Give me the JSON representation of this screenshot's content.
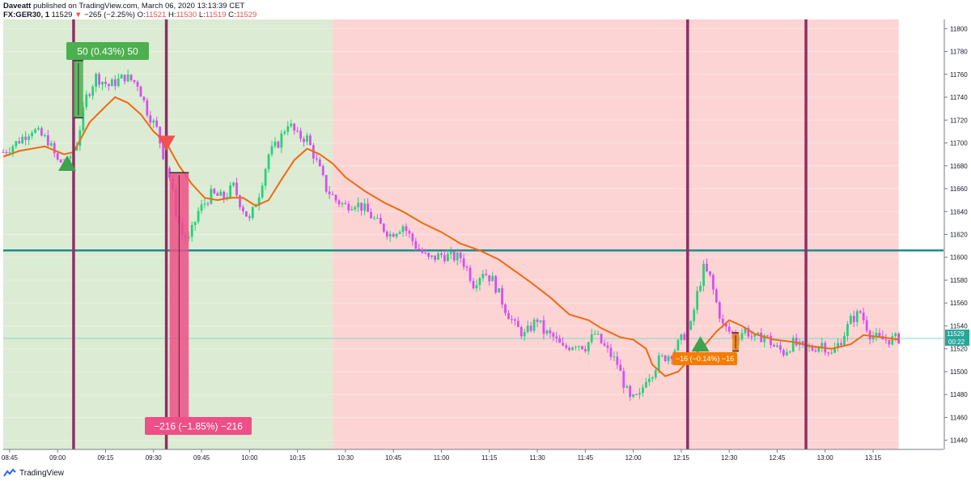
{
  "header": {
    "author": "Daveatt",
    "published": "published on TradingView.com, March 06, 2020 13:13:39 CET",
    "symbol": "FX:GER30, 1",
    "last": "11529",
    "change_arrow": "▼",
    "change": "−265 (−2.25%)",
    "o_label": "O:",
    "o": "11521",
    "h_label": "H:",
    "h": "11530",
    "l_label": "L:",
    "l": "11519",
    "c_label": "C:",
    "c": "11529"
  },
  "footer": {
    "brand": "TradingView"
  },
  "annotations": {
    "long_trade": "50 (0.43%) 50",
    "short_trade": "−216 (−1.85%) −216",
    "small_trade": "−16 (−0.14%) −16"
  },
  "price_label": {
    "value": "11529",
    "countdown": "00:22"
  },
  "colors": {
    "bull": "#26d07c",
    "bear": "#d64ef0",
    "ema": "#f06a10",
    "bg_green": "#dcebd3",
    "bg_red": "#fdd4d4",
    "level_line": "#1e8c8c",
    "vline": "#8e2f66",
    "badge_green": "#4caf50",
    "badge_pink": "#ee4f86",
    "badge_orange": "#f57c00",
    "current_price": "#26a69a"
  },
  "chart_data": {
    "type": "candlestick",
    "symbol": "FX:GER30",
    "interval": "1 minute",
    "ylim": [
      11432,
      11808
    ],
    "y_ticks": [
      11440,
      11460,
      11480,
      11500,
      11520,
      11540,
      11560,
      11580,
      11600,
      11620,
      11640,
      11660,
      11680,
      11700,
      11720,
      11740,
      11760,
      11780,
      11800
    ],
    "x_ticks": [
      "08:45",
      "09:00",
      "09:15",
      "09:30",
      "09:45",
      "10:00",
      "10:15",
      "10:30",
      "10:45",
      "11:00",
      "11:15",
      "11:30",
      "11:45",
      "12:00",
      "12:15",
      "12:30",
      "12:45",
      "13:00",
      "13:15"
    ],
    "x_range_min": [
      -17,
      277
    ],
    "session_zones": [
      {
        "name": "long",
        "from": -17,
        "to": 86,
        "color": "#dcebd3"
      },
      {
        "name": "short",
        "from": 86,
        "to": 263,
        "color": "#fdd4d4"
      }
    ],
    "vertical_lines": [
      {
        "x": 5,
        "label": "09:05"
      },
      {
        "x": 34,
        "label": "09:34"
      },
      {
        "x": 197,
        "label": "12:17"
      },
      {
        "x": 234,
        "label": "12:54"
      }
    ],
    "horizontal_level": 11606,
    "current_price": 11529,
    "ema_path": [
      [
        -17,
        11688
      ],
      [
        -12,
        11693
      ],
      [
        -4,
        11697
      ],
      [
        2,
        11690
      ],
      [
        5,
        11692
      ],
      [
        10,
        11718
      ],
      [
        15,
        11732
      ],
      [
        18,
        11740
      ],
      [
        22,
        11735
      ],
      [
        26,
        11725
      ],
      [
        30,
        11710
      ],
      [
        34,
        11700
      ],
      [
        38,
        11680
      ],
      [
        42,
        11664
      ],
      [
        46,
        11652
      ],
      [
        50,
        11650
      ],
      [
        54,
        11652
      ],
      [
        58,
        11652
      ],
      [
        62,
        11645
      ],
      [
        66,
        11650
      ],
      [
        70,
        11668
      ],
      [
        74,
        11685
      ],
      [
        78,
        11695
      ],
      [
        82,
        11690
      ],
      [
        86,
        11682
      ],
      [
        90,
        11670
      ],
      [
        96,
        11658
      ],
      [
        102,
        11648
      ],
      [
        108,
        11640
      ],
      [
        114,
        11630
      ],
      [
        120,
        11622
      ],
      [
        126,
        11612
      ],
      [
        132,
        11606
      ],
      [
        138,
        11598
      ],
      [
        142,
        11590
      ],
      [
        148,
        11578
      ],
      [
        154,
        11565
      ],
      [
        160,
        11550
      ],
      [
        166,
        11545
      ],
      [
        170,
        11538
      ],
      [
        176,
        11530
      ],
      [
        180,
        11528
      ],
      [
        184,
        11520
      ],
      [
        186,
        11506
      ],
      [
        190,
        11496
      ],
      [
        194,
        11500
      ],
      [
        198,
        11512
      ],
      [
        202,
        11522
      ],
      [
        206,
        11535
      ],
      [
        210,
        11545
      ],
      [
        214,
        11540
      ],
      [
        218,
        11533
      ],
      [
        224,
        11528
      ],
      [
        230,
        11526
      ],
      [
        236,
        11522
      ],
      [
        242,
        11520
      ],
      [
        248,
        11524
      ],
      [
        252,
        11532
      ],
      [
        258,
        11530
      ],
      [
        263,
        11528
      ]
    ],
    "price_path": [
      [
        -17,
        11692
      ],
      [
        -13,
        11700
      ],
      [
        -8,
        11712
      ],
      [
        -3,
        11702
      ],
      [
        0,
        11684
      ],
      [
        3,
        11682
      ],
      [
        6,
        11700
      ],
      [
        9,
        11740
      ],
      [
        12,
        11758
      ],
      [
        16,
        11750
      ],
      [
        21,
        11758
      ],
      [
        25,
        11752
      ],
      [
        28,
        11728
      ],
      [
        31,
        11712
      ],
      [
        33,
        11690
      ],
      [
        35,
        11670
      ],
      [
        37,
        11640
      ],
      [
        39,
        11620
      ],
      [
        41,
        11615
      ],
      [
        44,
        11640
      ],
      [
        48,
        11655
      ],
      [
        52,
        11652
      ],
      [
        55,
        11662
      ],
      [
        57,
        11648
      ],
      [
        60,
        11632
      ],
      [
        63,
        11656
      ],
      [
        66,
        11690
      ],
      [
        69,
        11700
      ],
      [
        72,
        11718
      ],
      [
        75,
        11706
      ],
      [
        78,
        11704
      ],
      [
        80,
        11690
      ],
      [
        82,
        11676
      ],
      [
        84,
        11660
      ],
      [
        87,
        11650
      ],
      [
        90,
        11645
      ],
      [
        93,
        11648
      ],
      [
        96,
        11642
      ],
      [
        100,
        11630
      ],
      [
        104,
        11620
      ],
      [
        108,
        11628
      ],
      [
        112,
        11610
      ],
      [
        116,
        11598
      ],
      [
        120,
        11602
      ],
      [
        124,
        11600
      ],
      [
        126,
        11600
      ],
      [
        128,
        11590
      ],
      [
        130,
        11577
      ],
      [
        133,
        11588
      ],
      [
        136,
        11580
      ],
      [
        138,
        11568
      ],
      [
        140,
        11555
      ],
      [
        143,
        11540
      ],
      [
        146,
        11532
      ],
      [
        150,
        11546
      ],
      [
        152,
        11535
      ],
      [
        155,
        11530
      ],
      [
        158,
        11520
      ],
      [
        162,
        11525
      ],
      [
        165,
        11522
      ],
      [
        168,
        11533
      ],
      [
        170,
        11525
      ],
      [
        172,
        11518
      ],
      [
        175,
        11507
      ],
      [
        177,
        11490
      ],
      [
        179,
        11475
      ],
      [
        182,
        11478
      ],
      [
        184,
        11495
      ],
      [
        186,
        11500
      ],
      [
        188,
        11510
      ],
      [
        192,
        11516
      ],
      [
        195,
        11528
      ],
      [
        198,
        11540
      ],
      [
        200,
        11568
      ],
      [
        202,
        11590
      ],
      [
        204,
        11582
      ],
      [
        206,
        11560
      ],
      [
        208,
        11540
      ],
      [
        212,
        11530
      ],
      [
        215,
        11537
      ],
      [
        218,
        11528
      ],
      [
        221,
        11532
      ],
      [
        224,
        11522
      ],
      [
        227,
        11517
      ],
      [
        230,
        11525
      ],
      [
        233,
        11520
      ],
      [
        236,
        11520
      ],
      [
        239,
        11525
      ],
      [
        242,
        11515
      ],
      [
        245,
        11528
      ],
      [
        248,
        11545
      ],
      [
        251,
        11552
      ],
      [
        254,
        11533
      ],
      [
        257,
        11528
      ],
      [
        260,
        11528
      ],
      [
        263,
        11529
      ]
    ],
    "trade_markers": [
      {
        "type": "buy_triangle",
        "x": 3,
        "y": 11682
      },
      {
        "type": "sell_triangle",
        "x": 34,
        "y": 11700
      },
      {
        "type": "buy_triangle",
        "x": 201,
        "y": 11524
      }
    ],
    "measure_boxes": [
      {
        "x_from": 5,
        "x_to": 8,
        "y_from": 11722,
        "y_to": 11772,
        "label_key": "long_trade",
        "color": "#4caf50"
      },
      {
        "x_from": 35,
        "x_to": 41,
        "y_from": 11458,
        "y_to": 11674,
        "label_key": "short_trade",
        "color": "#ee4f86"
      },
      {
        "x_from": 211,
        "x_to": 213,
        "y_from": 11518,
        "y_to": 11534,
        "label_key": "small_trade",
        "color": "#f57c00"
      }
    ]
  }
}
